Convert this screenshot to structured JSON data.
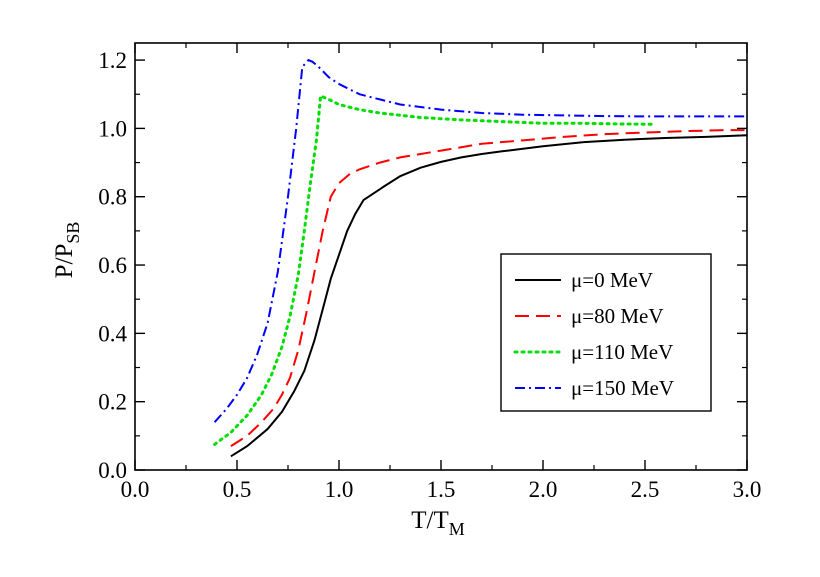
{
  "chart_data": {
    "type": "line",
    "title": "",
    "xlabel": {
      "main": "T/T",
      "sub": "M"
    },
    "ylabel": {
      "main": "P/P",
      "sub": "SB"
    },
    "xlim": [
      0.0,
      3.0
    ],
    "ylim": [
      0.0,
      1.25
    ],
    "xticks": [
      0.0,
      0.5,
      1.0,
      1.5,
      2.0,
      2.5,
      3.0
    ],
    "xtick_labels": [
      "0.0",
      "0.5",
      "1.0",
      "1.5",
      "2.0",
      "2.5",
      "3.0"
    ],
    "yticks": [
      0.0,
      0.2,
      0.4,
      0.6,
      0.8,
      1.0,
      1.2
    ],
    "ytick_labels": [
      "0.0",
      "0.2",
      "0.4",
      "0.6",
      "0.8",
      "1.0",
      "1.2"
    ],
    "grid": false,
    "legend_position": "center-right",
    "series": [
      {
        "name": "μ=0 MeV",
        "color": "#000000",
        "style": "solid",
        "x": [
          0.47,
          0.55,
          0.65,
          0.72,
          0.78,
          0.83,
          0.88,
          0.92,
          0.96,
          1.0,
          1.04,
          1.08,
          1.12,
          1.17,
          1.22,
          1.3,
          1.4,
          1.5,
          1.6,
          1.7,
          1.8,
          2.0,
          2.2,
          2.4,
          2.6,
          2.8,
          3.0
        ],
        "y": [
          0.04,
          0.07,
          0.12,
          0.17,
          0.23,
          0.29,
          0.38,
          0.47,
          0.56,
          0.63,
          0.7,
          0.75,
          0.79,
          0.81,
          0.83,
          0.86,
          0.885,
          0.902,
          0.915,
          0.925,
          0.933,
          0.948,
          0.96,
          0.967,
          0.972,
          0.975,
          0.98
        ]
      },
      {
        "name": "μ=80 MeV",
        "color": "#ff0000",
        "style": "dashed",
        "x": [
          0.47,
          0.55,
          0.62,
          0.68,
          0.72,
          0.76,
          0.8,
          0.84,
          0.88,
          0.92,
          0.96,
          1.0,
          1.05,
          1.1,
          1.2,
          1.3,
          1.4,
          1.5,
          1.7,
          1.9,
          2.1,
          2.3,
          2.5,
          2.7,
          2.9,
          3.0
        ],
        "y": [
          0.07,
          0.1,
          0.14,
          0.18,
          0.22,
          0.27,
          0.35,
          0.46,
          0.58,
          0.7,
          0.8,
          0.84,
          0.865,
          0.88,
          0.9,
          0.915,
          0.925,
          0.935,
          0.955,
          0.965,
          0.975,
          0.983,
          0.988,
          0.992,
          0.995,
          0.995
        ]
      },
      {
        "name": "μ=110 MeV",
        "color": "#00dd00",
        "style": "dotted",
        "x": [
          0.39,
          0.47,
          0.55,
          0.62,
          0.67,
          0.72,
          0.76,
          0.8,
          0.83,
          0.86,
          0.89,
          0.91,
          0.95,
          1.0,
          1.1,
          1.2,
          1.4,
          1.6,
          1.8,
          2.0,
          2.2,
          2.4,
          2.55
        ],
        "y": [
          0.075,
          0.11,
          0.16,
          0.22,
          0.28,
          0.36,
          0.45,
          0.57,
          0.7,
          0.84,
          0.97,
          1.095,
          1.085,
          1.07,
          1.055,
          1.045,
          1.032,
          1.025,
          1.02,
          1.015,
          1.015,
          1.013,
          1.012
        ]
      },
      {
        "name": "μ=150 MeV",
        "color": "#0000ff",
        "style": "dashdot",
        "x": [
          0.39,
          0.45,
          0.5,
          0.55,
          0.6,
          0.65,
          0.7,
          0.75,
          0.79,
          0.82,
          0.85,
          0.87,
          0.9,
          0.95,
          1.0,
          1.1,
          1.2,
          1.3,
          1.5,
          1.7,
          1.9,
          2.1,
          2.3,
          2.5,
          2.8,
          3.0
        ],
        "y": [
          0.14,
          0.18,
          0.22,
          0.27,
          0.34,
          0.43,
          0.58,
          0.8,
          1.0,
          1.18,
          1.2,
          1.195,
          1.18,
          1.15,
          1.13,
          1.1,
          1.085,
          1.07,
          1.055,
          1.045,
          1.04,
          1.038,
          1.036,
          1.035,
          1.035,
          1.035
        ]
      }
    ]
  }
}
